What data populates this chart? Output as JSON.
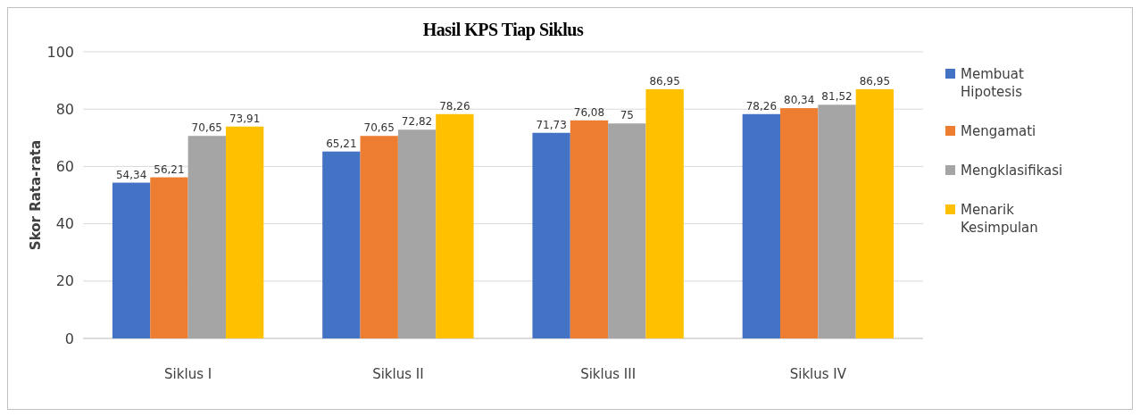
{
  "chart_data": {
    "type": "bar",
    "title": "Hasil KPS Tiap Siklus",
    "ylabel": "Skor Rata-rata",
    "categories": [
      "Siklus I",
      "Siklus II",
      "Siklus III",
      "Siklus IV"
    ],
    "series": [
      {
        "name": "Membuat Hipotesis",
        "color": "#4472c4",
        "values": [
          54.34,
          65.21,
          71.73,
          78.26
        ],
        "value_labels": [
          "54,34",
          "65,21",
          "71,73",
          "78,26"
        ]
      },
      {
        "name": "Mengamati",
        "color": "#ed7d31",
        "values": [
          56.21,
          70.65,
          76.08,
          80.34
        ],
        "value_labels": [
          "56,21",
          "70,65",
          "76,08",
          "80,34"
        ]
      },
      {
        "name": "Mengklasifikasi",
        "color": "#a5a5a5",
        "values": [
          70.65,
          72.82,
          75,
          81.52
        ],
        "value_labels": [
          "70,65",
          "72,82",
          "75",
          "81,52"
        ]
      },
      {
        "name": "Menarik Kesimpulan",
        "color": "#ffc000",
        "values": [
          73.91,
          78.26,
          86.95,
          86.95
        ],
        "value_labels": [
          "73,91",
          "78,26",
          "86,95",
          "86,95"
        ]
      }
    ],
    "ylim": [
      0,
      100
    ],
    "yticks": [
      0,
      20,
      40,
      60,
      80,
      100
    ],
    "grid": "y",
    "legend": "right"
  }
}
